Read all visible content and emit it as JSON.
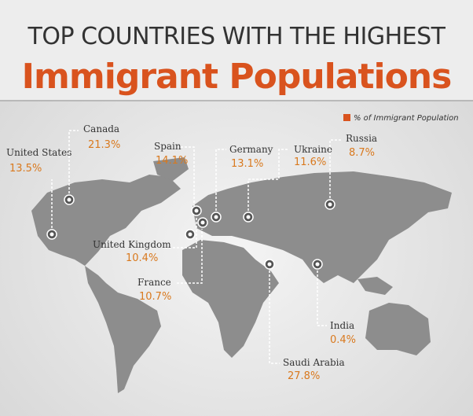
{
  "header": {
    "title_line1": "TOP COUNTRIES WITH THE HIGHEST",
    "title_line2": "Immigrant Populations"
  },
  "legend": "% of Immigrant Population",
  "countries": [
    {
      "name": "United States",
      "value": "13.5%"
    },
    {
      "name": "Canada",
      "value": "21.3%"
    },
    {
      "name": "Spain",
      "value": "14.1%"
    },
    {
      "name": "Germany",
      "value": "13.1%"
    },
    {
      "name": "Ukraine",
      "value": "11.6%"
    },
    {
      "name": "Russia",
      "value": "8.7%"
    },
    {
      "name": "United Kingdom",
      "value": "10.4%"
    },
    {
      "name": "France",
      "value": "10.7%"
    },
    {
      "name": "India",
      "value": "0.4%"
    },
    {
      "name": "Saudi Arabia",
      "value": "27.8%"
    }
  ]
}
